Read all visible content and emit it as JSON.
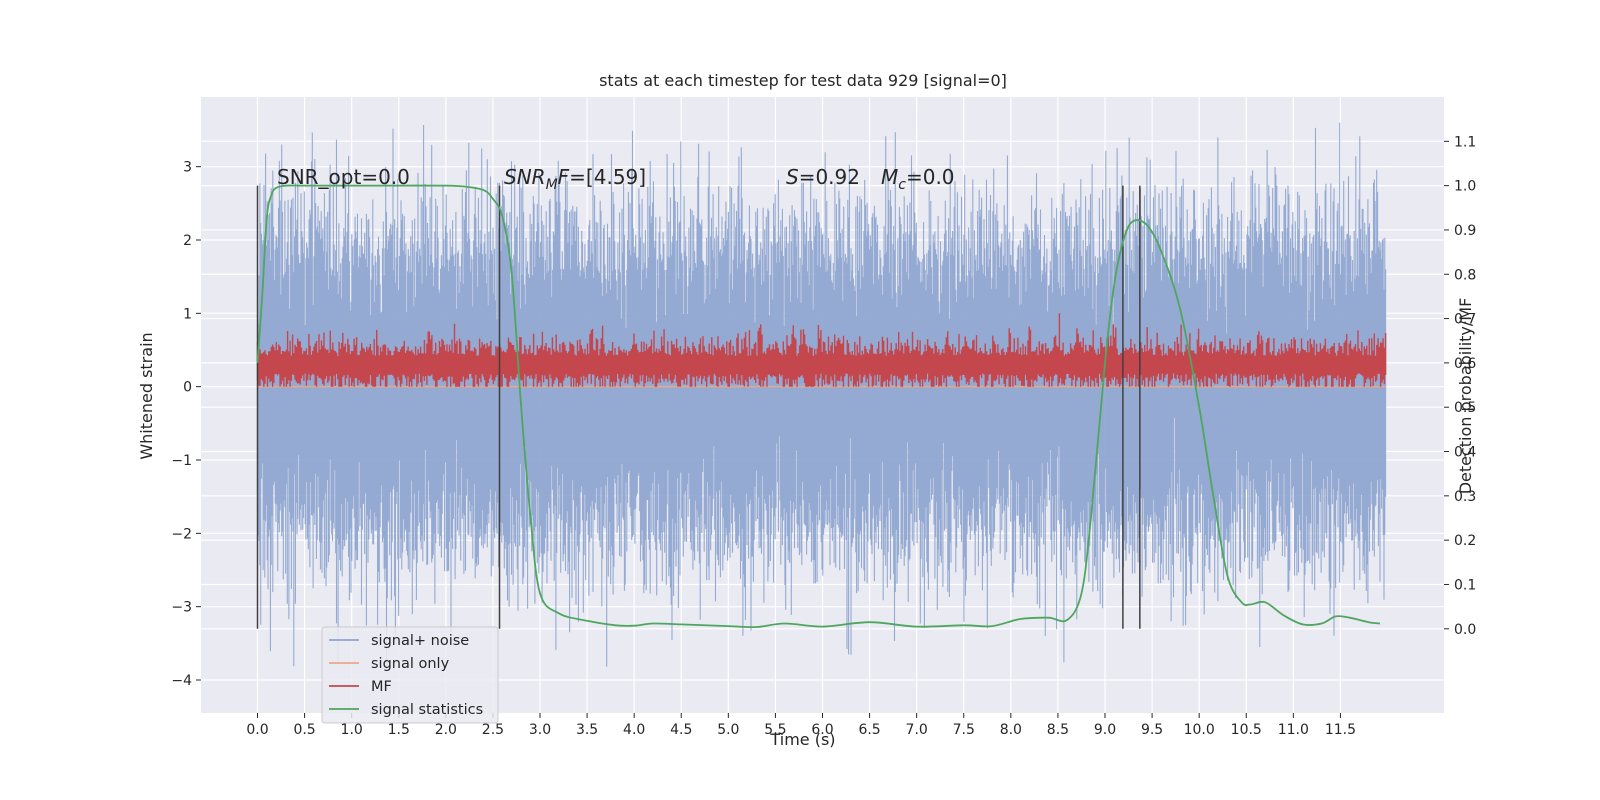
{
  "chart_data": {
    "type": "line",
    "title": "stats at each timestep for test data 929 [signal=0]",
    "xlabel": "Time (s)",
    "ylabel": "Whitened strain",
    "ylabel_right": "Detection probability/MF",
    "xlim": [
      -0.6,
      12.6
    ],
    "ylim": [
      -4.45,
      3.95
    ],
    "ylim_right": [
      -0.19,
      1.2
    ],
    "x_ticks": [
      "0.0",
      "0.5",
      "1.0",
      "1.5",
      "2.0",
      "2.5",
      "3.0",
      "3.5",
      "4.0",
      "4.5",
      "5.0",
      "5.5",
      "6.0",
      "6.5",
      "7.0",
      "7.5",
      "8.0",
      "8.5",
      "9.0",
      "9.5",
      "10.0",
      "10.5",
      "11.0",
      "11.5"
    ],
    "y_ticks": [
      "−4",
      "−3",
      "−2",
      "−1",
      "0",
      "1",
      "2",
      "3"
    ],
    "y_ticks_right": [
      "0.0",
      "0.1",
      "0.2",
      "0.3",
      "0.4",
      "0.5",
      "0.6",
      "0.7",
      "0.8",
      "0.9",
      "1.0",
      "1.1"
    ],
    "annotations": {
      "snr_opt": "SNR_opt=0.0",
      "snr_mf_italic": "SNR",
      "snr_mf_sub": "M",
      "snr_mf_italic2": "F",
      "snr_mf_value": "=[4.59]",
      "s_label": "S",
      "s_value": "=0.92",
      "mc_label": "M",
      "mc_sub": "c",
      "mc_value": "=0.0"
    },
    "legend": {
      "placement": "lower-left",
      "entries": [
        "signal+ noise",
        "signal only",
        "MF",
        "signal statistics"
      ]
    },
    "colors": {
      "signal_noise": "#8fa6d0",
      "signal_only": "#eaa788",
      "mf": "#c4474e",
      "signal_statistics": "#4ea65f",
      "vlines": "#404040",
      "background": "#eaeaf2",
      "grid": "#ffffff"
    },
    "vertical_lines_x": [
      0.0,
      2.57,
      9.19,
      9.37
    ],
    "series": [
      {
        "name": "signal+ noise",
        "description_range": "noise band",
        "x_range": [
          0.0,
          11.98
        ],
        "values_summary": {
          "typical_min": -2.6,
          "typical_max": 2.6,
          "extreme_min": -3.9,
          "extreme_max": 3.6
        }
      },
      {
        "name": "signal only",
        "x": [
          0.0,
          11.98
        ],
        "values": [
          0.0,
          0.0
        ]
      },
      {
        "name": "MF",
        "x_range": [
          0.0,
          11.98
        ],
        "values_summary": {
          "min": 0.0,
          "max": 1.0,
          "mean": 0.3
        }
      },
      {
        "name": "signal statistics",
        "axis": "right",
        "x": [
          0.0,
          0.05,
          0.1,
          0.15,
          0.2,
          0.3,
          0.5,
          1.0,
          1.5,
          2.0,
          2.2,
          2.4,
          2.5,
          2.6,
          2.7,
          2.8,
          2.9,
          3.0,
          3.2,
          3.5,
          3.8,
          4.0,
          4.2,
          4.5,
          5.0,
          5.3,
          5.6,
          6.0,
          6.5,
          7.0,
          7.5,
          7.8,
          8.1,
          8.4,
          8.6,
          8.75,
          8.85,
          9.0,
          9.1,
          9.2,
          9.3,
          9.45,
          9.6,
          9.8,
          10.0,
          10.15,
          10.3,
          10.45,
          10.55,
          10.7,
          10.9,
          11.1,
          11.3,
          11.45,
          11.6,
          11.8,
          11.92
        ],
        "values": [
          0.6,
          0.75,
          0.93,
          0.98,
          0.995,
          1.0,
          1.0,
          1.0,
          1.0,
          1.0,
          0.998,
          0.99,
          0.97,
          0.93,
          0.8,
          0.5,
          0.25,
          0.08,
          0.035,
          0.018,
          0.008,
          0.007,
          0.012,
          0.01,
          0.006,
          0.004,
          0.012,
          0.005,
          0.015,
          0.005,
          0.008,
          0.006,
          0.022,
          0.025,
          0.02,
          0.08,
          0.25,
          0.6,
          0.78,
          0.88,
          0.92,
          0.91,
          0.85,
          0.72,
          0.5,
          0.3,
          0.12,
          0.06,
          0.055,
          0.06,
          0.03,
          0.01,
          0.012,
          0.028,
          0.025,
          0.015,
          0.012
        ]
      }
    ]
  }
}
